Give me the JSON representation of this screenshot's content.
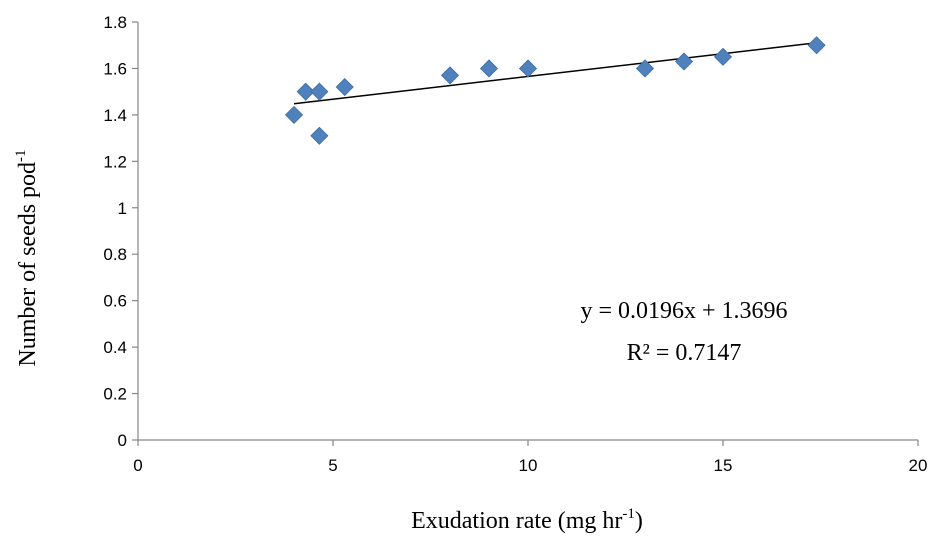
{
  "chart_data": {
    "type": "scatter",
    "xlabel_main": "Exudation rate (mg hr",
    "xlabel_sup": "-1",
    "xlabel_end": ")",
    "ylabel_main": "Number of seeds pod",
    "ylabel_sup": "-1",
    "xlim": [
      0,
      20
    ],
    "ylim": [
      0,
      1.8
    ],
    "x_ticks": [
      "0",
      "5",
      "10",
      "15",
      "20"
    ],
    "y_ticks": [
      "0",
      "0.2",
      "0.4",
      "0.6",
      "0.8",
      "1",
      "1.2",
      "1.4",
      "1.6",
      "1.8"
    ],
    "marker_color": "#4F81BD",
    "points": [
      {
        "x": 4.0,
        "y": 1.4
      },
      {
        "x": 4.3,
        "y": 1.5
      },
      {
        "x": 4.65,
        "y": 1.5
      },
      {
        "x": 4.65,
        "y": 1.31
      },
      {
        "x": 5.3,
        "y": 1.52
      },
      {
        "x": 8.0,
        "y": 1.57
      },
      {
        "x": 9.0,
        "y": 1.6
      },
      {
        "x": 10.0,
        "y": 1.6
      },
      {
        "x": 13.0,
        "y": 1.6
      },
      {
        "x": 14.0,
        "y": 1.63
      },
      {
        "x": 15.0,
        "y": 1.65
      },
      {
        "x": 17.4,
        "y": 1.7
      }
    ],
    "trendline": {
      "slope": 0.0196,
      "intercept": 1.3696,
      "x_range": [
        4.0,
        17.4
      ],
      "color": "#000000"
    },
    "equation": "y = 0.0196x + 1.3696",
    "r_squared": "R² = 0.7147",
    "grid": false,
    "legend": "none"
  }
}
